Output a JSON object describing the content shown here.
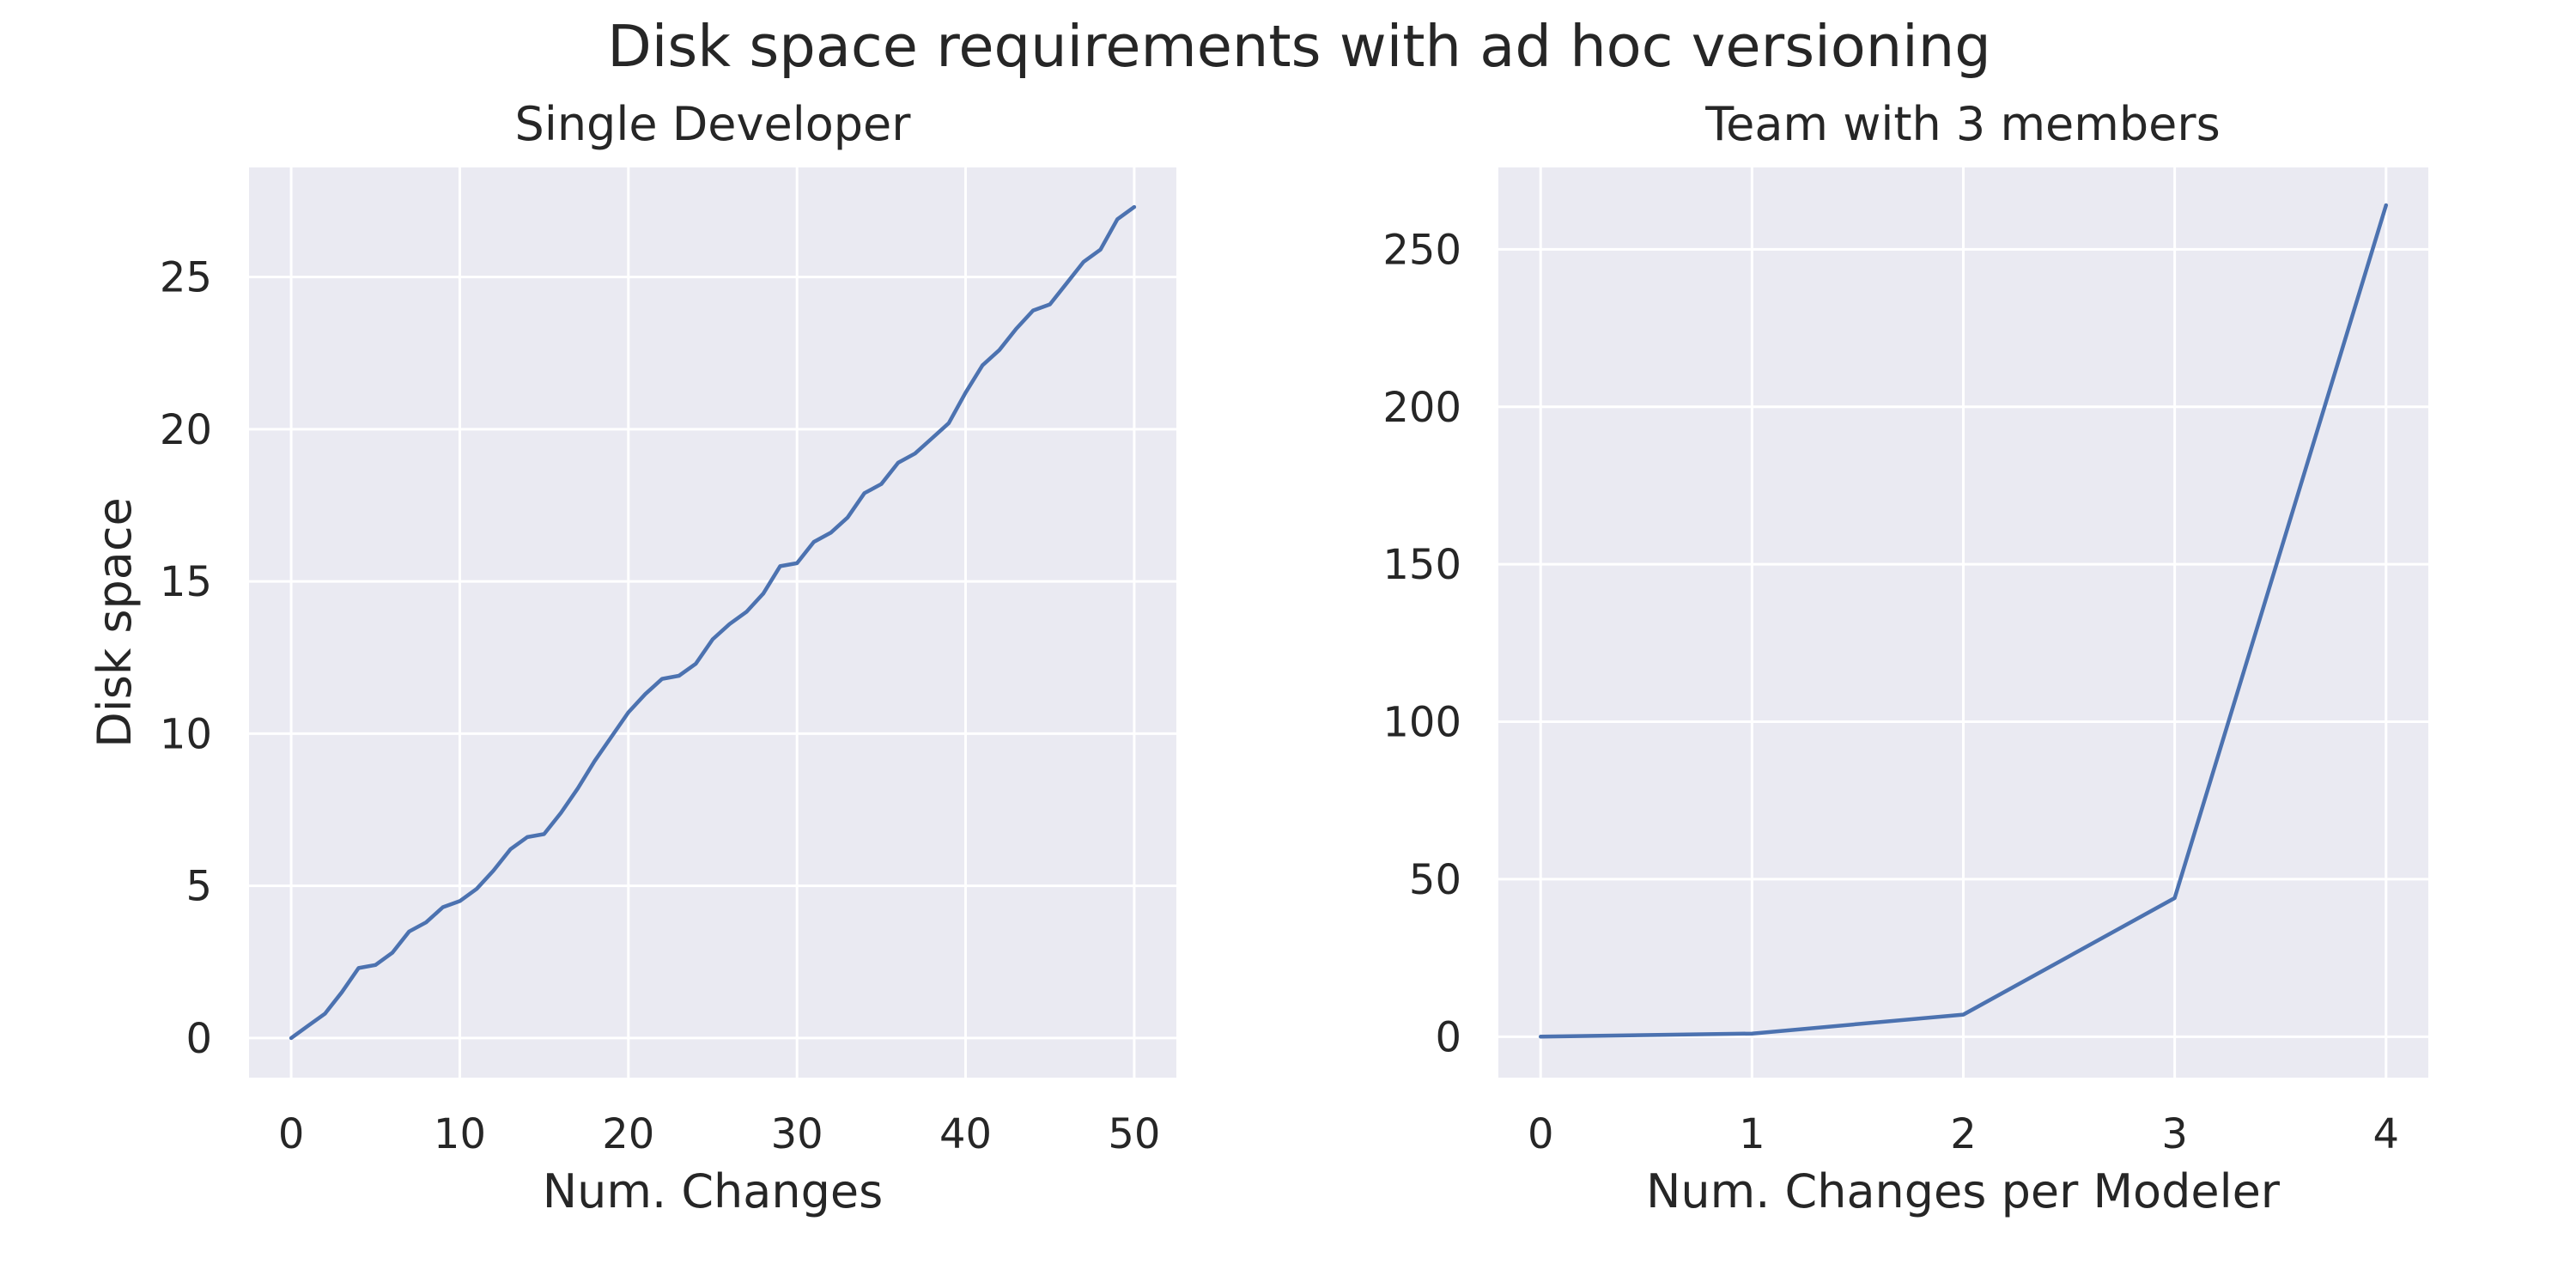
{
  "figure": {
    "suptitle": "Disk space requirements with ad hoc versioning"
  },
  "style": {
    "panel_bg": "#eaeaf2",
    "grid_color": "#ffffff",
    "line_color": "#4c72b0",
    "text_color": "#262626"
  },
  "chart_data": [
    {
      "type": "line",
      "title": "Single Developer",
      "xlabel": "Num. Changes",
      "ylabel": "Disk space",
      "xlim": [
        -2.5,
        52.5
      ],
      "ylim": [
        -1.3,
        28.6
      ],
      "xticks": [
        0,
        10,
        20,
        30,
        40,
        50
      ],
      "yticks": [
        0,
        5,
        10,
        15,
        20,
        25
      ],
      "grid": true,
      "x": [
        0,
        1,
        2,
        3,
        4,
        5,
        6,
        7,
        8,
        9,
        10,
        11,
        12,
        13,
        14,
        15,
        16,
        17,
        18,
        19,
        20,
        21,
        22,
        23,
        24,
        25,
        26,
        27,
        28,
        29,
        30,
        31,
        32,
        33,
        34,
        35,
        36,
        37,
        38,
        39,
        40,
        41,
        42,
        43,
        44,
        45,
        46,
        47,
        48,
        49,
        50
      ],
      "y": [
        0,
        0.4,
        0.8,
        1.5,
        2.3,
        2.4,
        2.8,
        3.5,
        3.8,
        4.3,
        4.5,
        4.9,
        5.5,
        6.2,
        6.6,
        6.7,
        7.4,
        8.2,
        9.1,
        9.9,
        10.7,
        11.3,
        11.8,
        11.9,
        12.3,
        13.1,
        13.6,
        14.0,
        14.6,
        15.5,
        15.6,
        16.3,
        16.6,
        17.1,
        17.9,
        18.2,
        18.9,
        19.2,
        19.7,
        20.2,
        21.2,
        22.1,
        22.6,
        23.3,
        23.9,
        24.1,
        24.8,
        25.5,
        25.9,
        26.9,
        27.3
      ]
    },
    {
      "type": "line",
      "title": "Team with 3 members",
      "xlabel": "Num. Changes per Modeler",
      "ylabel": "",
      "xlim": [
        -0.2,
        4.2
      ],
      "ylim": [
        -13,
        276
      ],
      "xticks": [
        0,
        1,
        2,
        3,
        4
      ],
      "yticks": [
        0,
        50,
        100,
        150,
        200,
        250
      ],
      "grid": true,
      "x": [
        0,
        1,
        2,
        3,
        4
      ],
      "y": [
        0,
        1,
        7,
        44,
        264
      ]
    }
  ]
}
